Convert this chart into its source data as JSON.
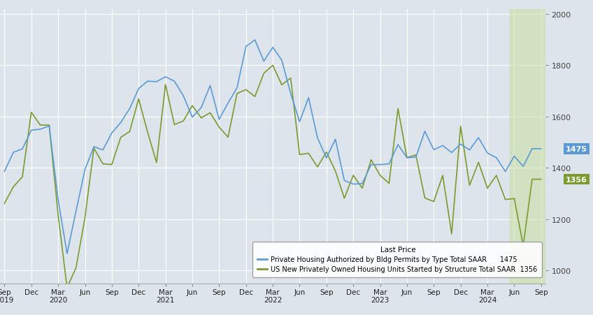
{
  "blue_label": "Private Housing Authorized by Bldg Permits by Type Total SAAR",
  "green_label": "US New Privately Owned Housing Units Started by Structure Total SAAR",
  "blue_last": 1475,
  "green_last": 1356,
  "ylim": [
    950,
    2020
  ],
  "yticks": [
    1000,
    1200,
    1400,
    1600,
    1800,
    2000
  ],
  "bg_color": "#dde4ec",
  "grid_color": "#ffffff",
  "blue_color": "#5b9bd5",
  "green_color": "#7a9b2e",
  "blue_last_color": "#5b9bd5",
  "green_last_color": "#7a9b2e",
  "highlight_bg": "#c8dfa0",
  "blue_data": [
    1387,
    1461,
    1474,
    1547,
    1551,
    1563,
    1276,
    1066,
    1232,
    1394,
    1483,
    1470,
    1536,
    1577,
    1631,
    1709,
    1738,
    1736,
    1755,
    1738,
    1681,
    1598,
    1635,
    1721,
    1589,
    1653,
    1712,
    1873,
    1899,
    1816,
    1870,
    1820,
    1690,
    1580,
    1674,
    1517,
    1439,
    1512,
    1351,
    1337,
    1339,
    1413,
    1413,
    1416,
    1491,
    1440,
    1442,
    1543,
    1471,
    1487,
    1460,
    1493,
    1470,
    1518,
    1458,
    1440,
    1386,
    1446,
    1406,
    1475,
    1475
  ],
  "green_data": [
    1262,
    1327,
    1365,
    1617,
    1567,
    1567,
    1216,
    934,
    1011,
    1206,
    1477,
    1416,
    1413,
    1519,
    1542,
    1669,
    1540,
    1421,
    1725,
    1569,
    1583,
    1643,
    1595,
    1615,
    1559,
    1520,
    1690,
    1705,
    1678,
    1769,
    1800,
    1724,
    1750,
    1452,
    1457,
    1404,
    1462,
    1388,
    1282,
    1371,
    1321,
    1432,
    1371,
    1340,
    1631,
    1440,
    1451,
    1283,
    1269,
    1371,
    1143,
    1562,
    1332,
    1422,
    1321,
    1371,
    1277,
    1281,
    1097,
    1356,
    1356
  ],
  "highlight_start": 57,
  "xtick_positions": [
    0,
    3,
    6,
    9,
    12,
    15,
    18,
    21,
    24,
    27,
    30,
    33,
    36,
    39,
    42,
    45,
    48,
    51,
    54,
    57,
    60
  ],
  "xtick_months": [
    "Sep",
    "Dec",
    "Mar",
    "Jun",
    "Sep",
    "Dec",
    "Mar",
    "Jun",
    "Sep",
    "Dec",
    "Mar",
    "Jun",
    "Sep",
    "Dec",
    "Mar",
    "Jun",
    "Sep",
    "Dec",
    "Mar",
    "Jun",
    "Sep"
  ],
  "xtick_years": [
    "2019",
    "",
    "2020",
    "",
    "",
    "",
    "2021",
    "",
    "",
    "",
    "2022",
    "",
    "",
    "",
    "2023",
    "",
    "",
    "",
    "2024",
    "",
    ""
  ]
}
